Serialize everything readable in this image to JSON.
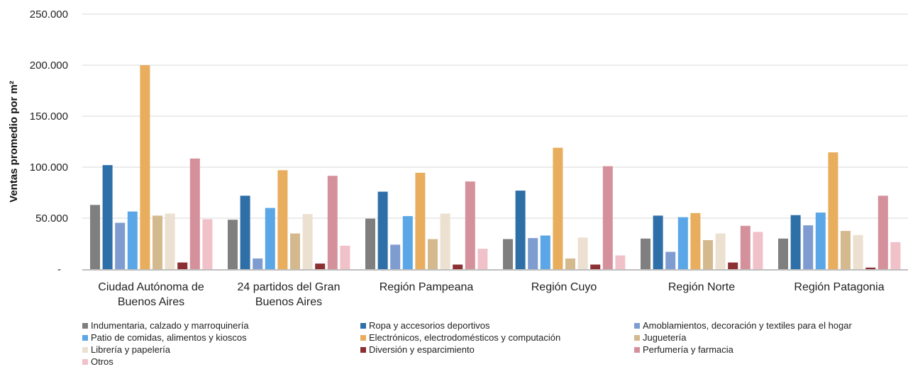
{
  "chart_data": {
    "type": "bar",
    "title": "",
    "xlabel": "",
    "ylabel": "Ventas promedio por m²",
    "ylim": [
      0,
      250000
    ],
    "yticks": [
      0,
      50000,
      100000,
      150000,
      200000,
      250000
    ],
    "ytick_labels": [
      "-",
      "50.000",
      "100.000",
      "150.000",
      "200.000",
      "250.000"
    ],
    "grid": true,
    "legend_position": "bottom",
    "categories": [
      [
        "Ciudad Autónoma de",
        "Buenos Aires"
      ],
      [
        "24 partidos del Gran",
        "Buenos Aires"
      ],
      [
        "Región Pampeana"
      ],
      [
        "Región Cuyo"
      ],
      [
        "Región Norte"
      ],
      [
        "Región Patagonia"
      ]
    ],
    "series": [
      {
        "name": "Indumentaria, calzado y marroquinería",
        "color": "#7f7f7f",
        "values": [
          63000,
          48500,
          49500,
          29500,
          30000,
          30000
        ]
      },
      {
        "name": "Ropa y accesorios deportivos",
        "color": "#2e6fa7",
        "values": [
          102000,
          72000,
          76000,
          77000,
          52500,
          53000
        ]
      },
      {
        "name": "Amoblamientos, decoración y textiles para el hogar",
        "color": "#7f9cd0",
        "values": [
          45500,
          10500,
          24000,
          30500,
          17000,
          43000
        ]
      },
      {
        "name": "Patio de comidas, alimentos y kioscos",
        "color": "#5aa6e6",
        "values": [
          56500,
          60000,
          52000,
          33000,
          51000,
          55500
        ]
      },
      {
        "name": "Electrónicos, electrodomésticos y computación",
        "color": "#e8ad5d",
        "values": [
          200000,
          97000,
          94500,
          119000,
          55000,
          114500
        ]
      },
      {
        "name": "Juguetería",
        "color": "#d4b98f",
        "values": [
          52500,
          35000,
          29500,
          10500,
          28500,
          37500
        ]
      },
      {
        "name": "Librería y papelería",
        "color": "#ece0d1",
        "values": [
          54500,
          54000,
          54500,
          31000,
          35000,
          33500
        ]
      },
      {
        "name": "Diversión y esparcimiento",
        "color": "#8b2f32",
        "values": [
          6500,
          5500,
          4500,
          4500,
          6500,
          1500
        ]
      },
      {
        "name": "Perfumería y farmacia",
        "color": "#d4919c",
        "values": [
          108500,
          91500,
          86000,
          101000,
          42500,
          72000
        ]
      },
      {
        "name": "Otros",
        "color": "#f0c1c9",
        "values": [
          49000,
          23000,
          20000,
          13500,
          36500,
          26500
        ]
      }
    ]
  }
}
